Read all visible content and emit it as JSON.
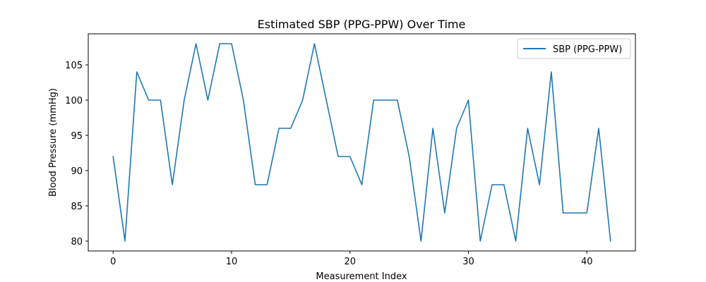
{
  "chart_data": {
    "type": "line",
    "title": "Estimated SBP (PPG-PPW) Over Time",
    "xlabel": "Measurement Index",
    "ylabel": "Blood Pressure (mmHg)",
    "xlim": [
      -2.1,
      44.1
    ],
    "ylim": [
      78.6,
      109.4
    ],
    "xticks": [
      0,
      10,
      20,
      30,
      40
    ],
    "yticks": [
      80,
      85,
      90,
      95,
      100,
      105
    ],
    "legend_position": "top-right",
    "series": [
      {
        "name": "SBP (PPG-PPW)",
        "color": "#1f77b4",
        "x": [
          0,
          1,
          2,
          3,
          4,
          5,
          6,
          7,
          8,
          9,
          10,
          11,
          12,
          13,
          14,
          15,
          16,
          17,
          18,
          19,
          20,
          21,
          22,
          23,
          24,
          25,
          26,
          27,
          28,
          29,
          30,
          31,
          32,
          33,
          34,
          35,
          36,
          37,
          38,
          39,
          40,
          41,
          42
        ],
        "values": [
          92,
          80,
          104,
          100,
          100,
          88,
          100,
          108,
          100,
          108,
          108,
          100,
          88,
          88,
          96,
          96,
          100,
          108,
          100,
          92,
          92,
          88,
          100,
          100,
          100,
          92,
          80,
          96,
          84,
          96,
          100,
          80,
          88,
          88,
          80,
          96,
          88,
          104,
          84,
          84,
          84,
          96,
          80
        ]
      }
    ]
  }
}
